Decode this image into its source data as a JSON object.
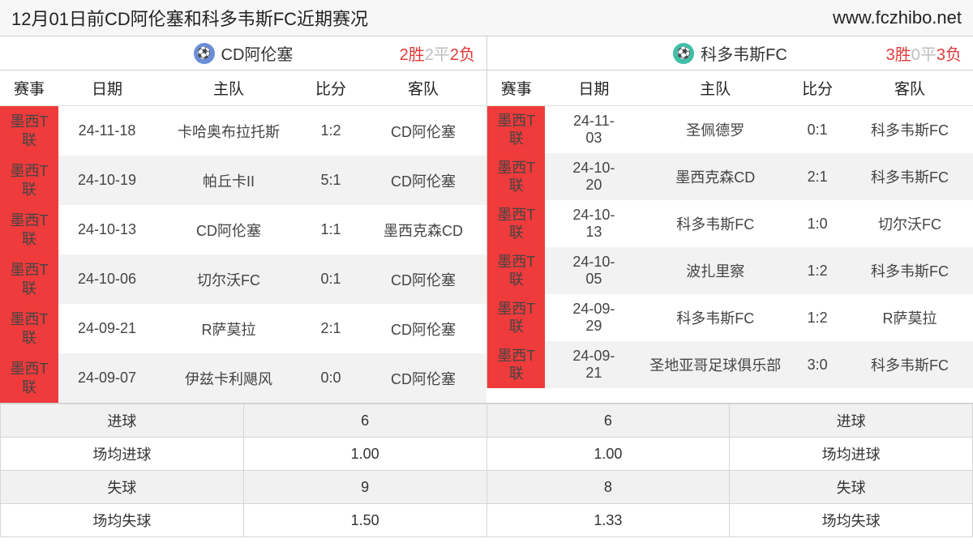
{
  "header": {
    "title": "12月01日前CD阿伦塞和科多韦斯FC近期赛况",
    "site": "www.fczhibo.net"
  },
  "teamA": {
    "name": "CD阿伦塞",
    "icon_color": "#6a8ed8",
    "record": {
      "win_num": "2",
      "win_label": "胜",
      "draw_num": "2",
      "draw_label": "平",
      "lose_num": "2",
      "lose_label": "负"
    }
  },
  "teamB": {
    "name": "科多韦斯FC",
    "icon_color": "#3fbfa8",
    "record": {
      "win_num": "3",
      "win_label": "胜",
      "draw_num": "0",
      "draw_label": "平",
      "lose_num": "3",
      "lose_label": "负"
    }
  },
  "columns": {
    "league": "赛事",
    "date": "日期",
    "home": "主队",
    "score": "比分",
    "away": "客队"
  },
  "matchesA": [
    {
      "league": "墨西T联",
      "date": "24-11-18",
      "home": "卡哈奥布拉托斯",
      "score": "1:2",
      "away": "CD阿伦塞"
    },
    {
      "league": "墨西T联",
      "date": "24-10-19",
      "home": "帕丘卡II",
      "score": "5:1",
      "away": "CD阿伦塞"
    },
    {
      "league": "墨西T联",
      "date": "24-10-13",
      "home": "CD阿伦塞",
      "score": "1:1",
      "away": "墨西克森CD"
    },
    {
      "league": "墨西T联",
      "date": "24-10-06",
      "home": "切尔沃FC",
      "score": "0:1",
      "away": "CD阿伦塞"
    },
    {
      "league": "墨西T联",
      "date": "24-09-21",
      "home": "R萨莫拉",
      "score": "2:1",
      "away": "CD阿伦塞"
    },
    {
      "league": "墨西T联",
      "date": "24-09-07",
      "home": "伊兹卡利飓风",
      "score": "0:0",
      "away": "CD阿伦塞"
    }
  ],
  "matchesB": [
    {
      "league": "墨西T联",
      "date": "24-11-03",
      "home": "圣佩德罗",
      "score": "0:1",
      "away": "科多韦斯FC"
    },
    {
      "league": "墨西T联",
      "date": "24-10-20",
      "home": "墨西克森CD",
      "score": "2:1",
      "away": "科多韦斯FC"
    },
    {
      "league": "墨西T联",
      "date": "24-10-13",
      "home": "科多韦斯FC",
      "score": "1:0",
      "away": "切尔沃FC"
    },
    {
      "league": "墨西T联",
      "date": "24-10-05",
      "home": "波扎里察",
      "score": "1:2",
      "away": "科多韦斯FC"
    },
    {
      "league": "墨西T联",
      "date": "24-09-29",
      "home": "科多韦斯FC",
      "score": "1:2",
      "away": "R萨莫拉"
    },
    {
      "league": "墨西T联",
      "date": "24-09-21",
      "home": "圣地亚哥足球俱乐部",
      "score": "3:0",
      "away": "科多韦斯FC"
    }
  ],
  "stats": {
    "rows": [
      {
        "labelL": "进球",
        "valA": "6",
        "valB": "6",
        "labelR": "进球"
      },
      {
        "labelL": "场均进球",
        "valA": "1.00",
        "valB": "1.00",
        "labelR": "场均进球"
      },
      {
        "labelL": "失球",
        "valA": "9",
        "valB": "8",
        "labelR": "失球"
      },
      {
        "labelL": "场均失球",
        "valA": "1.50",
        "valB": "1.33",
        "labelR": "场均失球"
      }
    ]
  },
  "colors": {
    "league_bg": "#ef3b3b",
    "row_alt": "#f2f2f2",
    "border": "#d0d0d0",
    "rec_red": "#e03a3a",
    "rec_grey": "#bfbfbf"
  }
}
